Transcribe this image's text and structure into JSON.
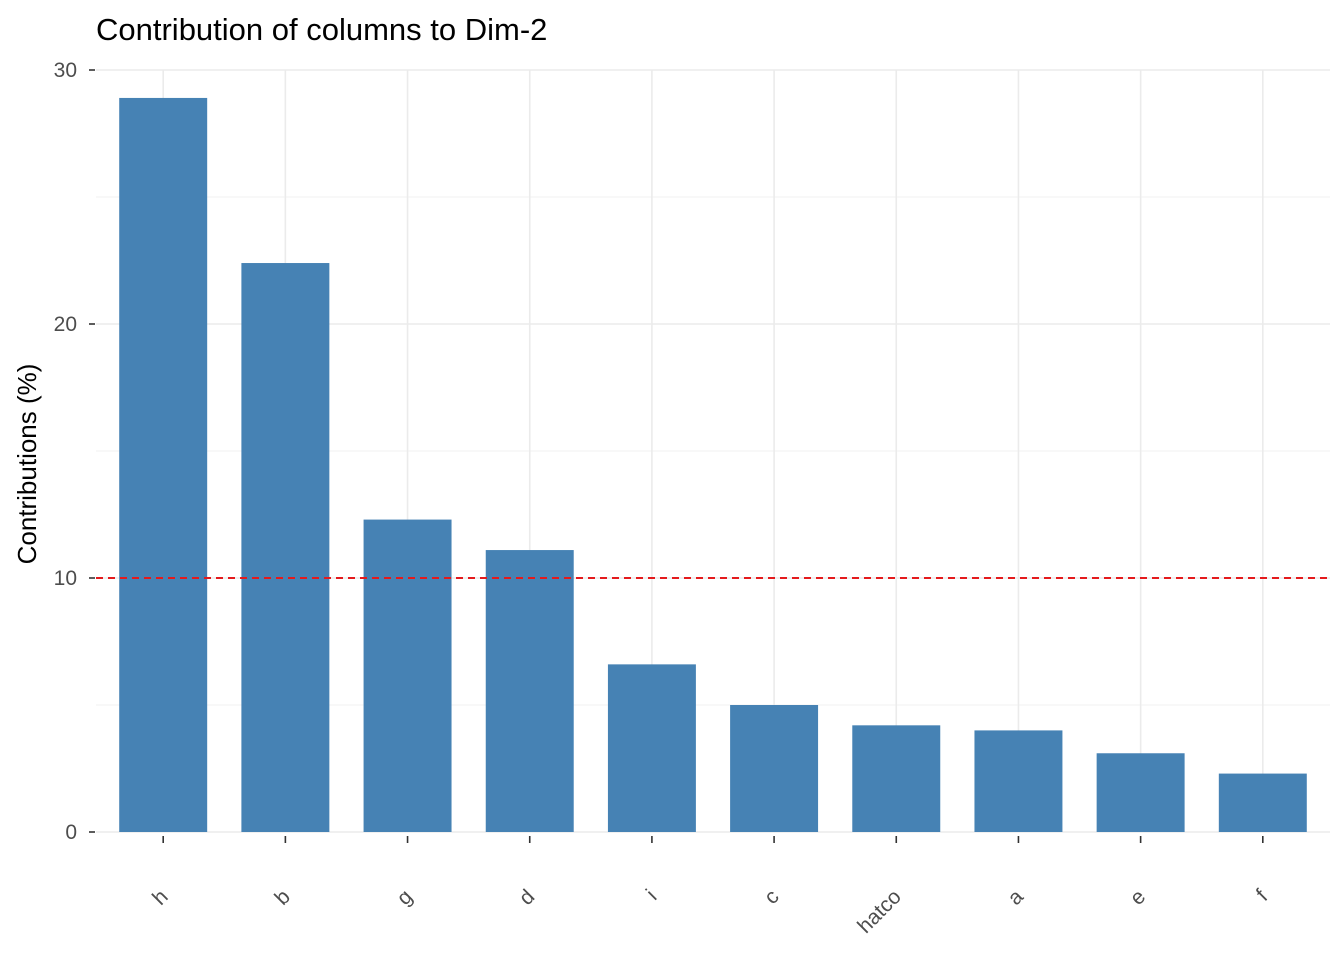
{
  "chart_data": {
    "type": "bar",
    "title": "Contribution of columns to Dim-2",
    "xlabel": "",
    "ylabel": "Contributions (%)",
    "categories": [
      "h",
      "b",
      "g",
      "d",
      "i",
      "c",
      "hatco",
      "a",
      "e",
      "f"
    ],
    "values": [
      28.9,
      22.4,
      12.3,
      11.1,
      6.6,
      5.0,
      4.2,
      4.0,
      3.1,
      2.3
    ],
    "ylim": [
      0,
      30
    ],
    "yticks": [
      0,
      10,
      20,
      30
    ],
    "reference_line": {
      "value": 10,
      "style": "dashed"
    },
    "grid": true,
    "colors": {
      "bar": "#4682B4",
      "reference_line": "#E41A1C"
    }
  }
}
